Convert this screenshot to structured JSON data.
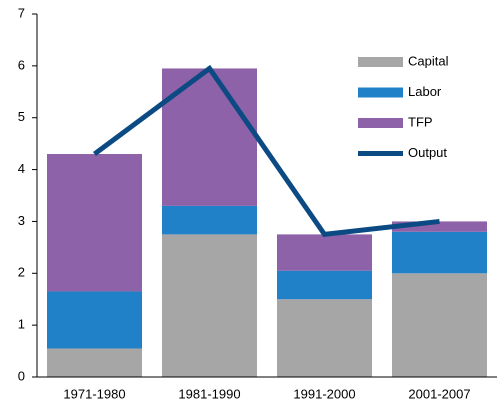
{
  "chart_data": {
    "type": "bar",
    "categories": [
      "1971-1980",
      "1981-1990",
      "1991-2000",
      "2001-2007"
    ],
    "series": [
      {
        "name": "Capital",
        "color": "#a6a6a6",
        "values": [
          0.55,
          2.75,
          1.5,
          2.0
        ]
      },
      {
        "name": "Labor",
        "color": "#2080c8",
        "values": [
          1.1,
          0.55,
          0.55,
          0.8
        ]
      },
      {
        "name": "TFP",
        "color": "#8e62a8",
        "values": [
          2.65,
          2.65,
          0.7,
          0.2
        ]
      },
      {
        "name": "Output",
        "color": "#0b4a82",
        "type": "line",
        "values": [
          4.3,
          5.95,
          2.75,
          3.0
        ]
      }
    ],
    "stacked": true,
    "ylim": [
      0,
      7
    ],
    "yticks": [
      0,
      1,
      2,
      3,
      4,
      5,
      6,
      7
    ],
    "grid": false,
    "legend": "upper right"
  }
}
